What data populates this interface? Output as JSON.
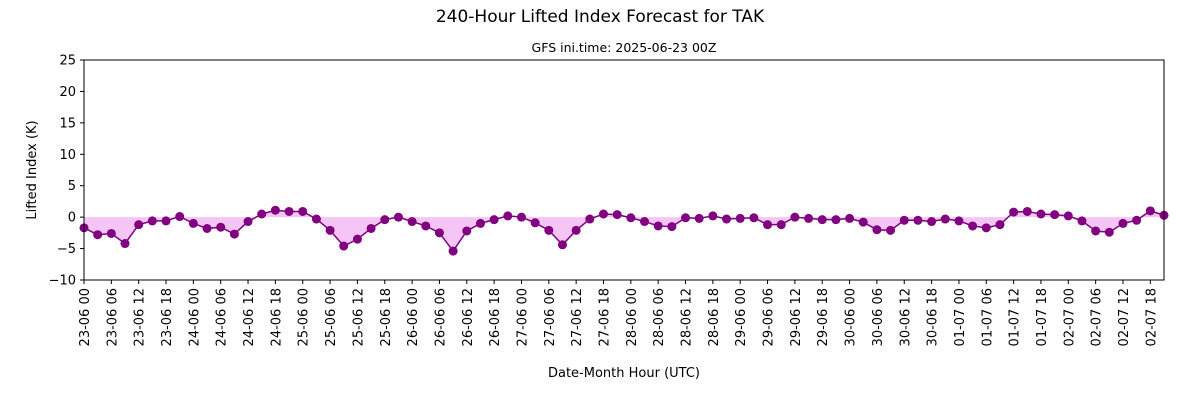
{
  "chart_data": {
    "type": "line",
    "title": "240-Hour Lifted Index Forecast for TAK",
    "subtitle": "GFS ini.time: 2025-06-23 00Z",
    "xlabel": "Date-Month Hour (UTC)",
    "ylabel": "Lifted Index (K)",
    "ylim": [
      -10,
      25
    ],
    "yticks": [
      -10,
      -5,
      0,
      5,
      10,
      15,
      20,
      25
    ],
    "x_step_hours": 3,
    "x_start": "23-06 00",
    "x_end": "02-07 21",
    "xtick_labels": [
      "23-06 00",
      "23-06 06",
      "23-06 12",
      "23-06 18",
      "24-06 00",
      "24-06 06",
      "24-06 12",
      "24-06 18",
      "25-06 00",
      "25-06 06",
      "25-06 12",
      "25-06 18",
      "26-06 00",
      "26-06 06",
      "26-06 12",
      "26-06 18",
      "27-06 00",
      "27-06 06",
      "27-06 12",
      "27-06 18",
      "28-06 00",
      "28-06 06",
      "28-06 12",
      "28-06 18",
      "29-06 00",
      "29-06 06",
      "29-06 12",
      "29-06 18",
      "30-06 00",
      "30-06 06",
      "30-06 12",
      "30-06 18",
      "01-07 00",
      "01-07 06",
      "01-07 12",
      "01-07 18",
      "02-07 00",
      "02-07 06",
      "02-07 12",
      "02-07 18"
    ],
    "series": [
      {
        "values": [
          -1.7,
          -2.8,
          -2.6,
          -4.2,
          -1.2,
          -0.6,
          -0.6,
          0.1,
          -1.0,
          -1.8,
          -1.6,
          -2.7,
          -0.7,
          0.5,
          1.1,
          0.9,
          0.9,
          -0.3,
          -2.1,
          -4.6,
          -3.5,
          -1.8,
          -0.4,
          0.0,
          -0.7,
          -1.4,
          -2.5,
          -5.4,
          -2.2,
          -1.0,
          -0.4,
          0.2,
          0.0,
          -0.9,
          -2.1,
          -4.4,
          -2.1,
          -0.3,
          0.5,
          0.4,
          -0.1,
          -0.7,
          -1.4,
          -1.5,
          -0.1,
          -0.2,
          0.2,
          -0.3,
          -0.2,
          -0.1,
          -1.2,
          -1.2,
          0.0,
          -0.2,
          -0.4,
          -0.4,
          -0.2,
          -0.8,
          -2.0,
          -2.1,
          -0.5,
          -0.5,
          -0.7,
          -0.3,
          -0.6,
          -1.4,
          -1.7,
          -1.2,
          0.8,
          0.9,
          0.5,
          0.4,
          0.2,
          -0.6,
          -2.2,
          -2.4,
          -1.0,
          -0.5,
          1.0,
          0.3
        ],
        "color": "#800080",
        "fill_color": "#f5c6f5"
      }
    ],
    "grid": false
  }
}
